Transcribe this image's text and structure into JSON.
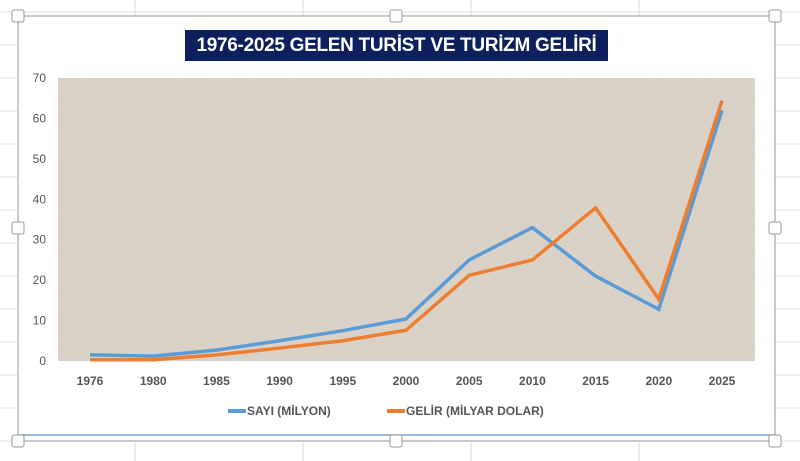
{
  "colors": {
    "sayi": "#5b9bd5",
    "gelir": "#ed7d31",
    "plot_bg": "#ddd5ca",
    "title_bg": "#0d1f5c"
  },
  "chart_data": {
    "type": "line",
    "title": "1976-2025 GELEN TURIST VE TURIZM GELIRI",
    "title_display": "1976-2025 GELEN TURİST VE TURİZM GELİRİ",
    "categories": [
      "1976",
      "1980",
      "1985",
      "1990",
      "1995",
      "2000",
      "2005",
      "2010",
      "2015",
      "2020",
      "2025"
    ],
    "ylim": [
      0,
      70
    ],
    "yticks": [
      0,
      10,
      20,
      30,
      40,
      50,
      60,
      70
    ],
    "grid": false,
    "legend": "bottom",
    "series": [
      {
        "name": "SAYI (MİLYON)",
        "values": [
          1.5,
          1.2,
          2.7,
          5,
          7.5,
          10.4,
          25,
          33,
          21,
          12.8,
          62
        ]
      },
      {
        "name": "GELİR    (MİLYAR DOLAR)",
        "values": [
          0.3,
          0.3,
          1.5,
          3.2,
          5,
          7.6,
          21.2,
          25,
          37.9,
          15.3,
          64.4
        ]
      }
    ]
  }
}
